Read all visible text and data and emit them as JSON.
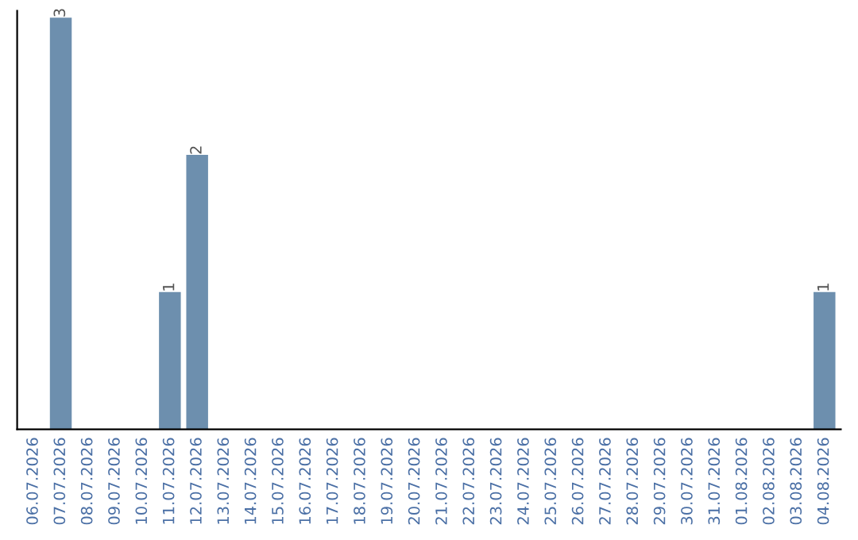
{
  "chart_data": {
    "type": "bar",
    "categories": [
      "06.07.2026",
      "07.07.2026",
      "08.07.2026",
      "09.07.2026",
      "10.07.2026",
      "11.07.2026",
      "12.07.2026",
      "13.07.2026",
      "14.07.2026",
      "15.07.2026",
      "16.07.2026",
      "17.07.2026",
      "18.07.2026",
      "19.07.2026",
      "20.07.2026",
      "21.07.2026",
      "22.07.2026",
      "23.07.2026",
      "24.07.2026",
      "25.07.2026",
      "26.07.2026",
      "27.07.2026",
      "28.07.2026",
      "29.07.2026",
      "30.07.2026",
      "31.07.2026",
      "01.08.2026",
      "02.08.2026",
      "03.08.2026",
      "04.08.2026"
    ],
    "values": [
      0,
      3,
      0,
      0,
      0,
      1,
      2,
      0,
      0,
      0,
      0,
      0,
      0,
      0,
      0,
      0,
      0,
      0,
      0,
      0,
      0,
      0,
      0,
      0,
      0,
      0,
      0,
      0,
      0,
      1
    ],
    "value_labels": [
      null,
      "3",
      null,
      null,
      null,
      "1",
      "2",
      null,
      null,
      null,
      null,
      null,
      null,
      null,
      null,
      null,
      null,
      null,
      null,
      null,
      null,
      null,
      null,
      null,
      null,
      null,
      null,
      null,
      null,
      "1"
    ],
    "color": "#6d8fae",
    "ylim": [
      0,
      3.05
    ],
    "tick_labels": "x",
    "grid": false,
    "legend": false
  }
}
